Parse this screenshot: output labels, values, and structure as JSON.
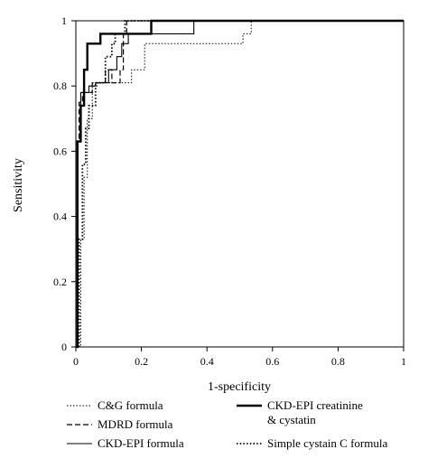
{
  "chart_data": {
    "type": "line",
    "title": "",
    "xlabel": "1-specificity",
    "ylabel": "Sensitivity",
    "xlim": [
      0,
      1
    ],
    "ylim": [
      0,
      1
    ],
    "x_ticks": [
      "0",
      "0.2",
      "0.4",
      "0.6",
      "0.8",
      "1"
    ],
    "y_ticks": [
      "0",
      "0.2",
      "0.4",
      "0.6",
      "0.8",
      "1"
    ],
    "grid": false,
    "legend_position": "bottom",
    "series": [
      {
        "name": "C&G formula",
        "line_style": "dotted-thin",
        "points": [
          [
            0,
            0
          ],
          [
            0.015,
            0
          ],
          [
            0.015,
            0.33
          ],
          [
            0.025,
            0.33
          ],
          [
            0.025,
            0.52
          ],
          [
            0.035,
            0.52
          ],
          [
            0.035,
            0.7
          ],
          [
            0.05,
            0.7
          ],
          [
            0.05,
            0.8
          ],
          [
            0.065,
            0.8
          ],
          [
            0.065,
            0.81
          ],
          [
            0.17,
            0.81
          ],
          [
            0.17,
            0.85
          ],
          [
            0.21,
            0.85
          ],
          [
            0.21,
            0.93
          ],
          [
            0.51,
            0.93
          ],
          [
            0.51,
            0.96
          ],
          [
            0.535,
            0.96
          ],
          [
            0.535,
            1
          ],
          [
            1,
            1
          ]
        ]
      },
      {
        "name": "MDRD formula",
        "line_style": "dashed",
        "points": [
          [
            0,
            0
          ],
          [
            0.005,
            0
          ],
          [
            0.005,
            0.63
          ],
          [
            0.01,
            0.63
          ],
          [
            0.01,
            0.75
          ],
          [
            0.02,
            0.75
          ],
          [
            0.02,
            0.78
          ],
          [
            0.05,
            0.78
          ],
          [
            0.05,
            0.81
          ],
          [
            0.09,
            0.81
          ],
          [
            0.09,
            0.85
          ],
          [
            0.11,
            0.85
          ],
          [
            0.11,
            0.81
          ],
          [
            0.135,
            0.81
          ],
          [
            0.135,
            0.85
          ],
          [
            0.145,
            0.85
          ],
          [
            0.145,
            0.96
          ],
          [
            0.155,
            0.96
          ],
          [
            0.155,
            1
          ],
          [
            1,
            1
          ]
        ]
      },
      {
        "name": "CKD-EPI formula",
        "line_style": "solid-thin",
        "points": [
          [
            0,
            0
          ],
          [
            0.005,
            0
          ],
          [
            0.005,
            0.63
          ],
          [
            0.015,
            0.63
          ],
          [
            0.015,
            0.78
          ],
          [
            0.04,
            0.78
          ],
          [
            0.04,
            0.8
          ],
          [
            0.06,
            0.8
          ],
          [
            0.06,
            0.81
          ],
          [
            0.1,
            0.81
          ],
          [
            0.1,
            0.85
          ],
          [
            0.125,
            0.85
          ],
          [
            0.125,
            0.89
          ],
          [
            0.14,
            0.89
          ],
          [
            0.14,
            0.93
          ],
          [
            0.16,
            0.93
          ],
          [
            0.16,
            0.96
          ],
          [
            0.36,
            0.96
          ],
          [
            0.36,
            1
          ],
          [
            1,
            1
          ]
        ]
      },
      {
        "name": "CKD-EPI creatinine & cystatin",
        "legend_lines": [
          "CKD-EPI creatinine",
          "& cystatin"
        ],
        "line_style": "solid-thick",
        "points": [
          [
            0,
            0
          ],
          [
            0.005,
            0
          ],
          [
            0.005,
            0.63
          ],
          [
            0.015,
            0.63
          ],
          [
            0.015,
            0.74
          ],
          [
            0.025,
            0.74
          ],
          [
            0.025,
            0.85
          ],
          [
            0.035,
            0.85
          ],
          [
            0.035,
            0.93
          ],
          [
            0.075,
            0.93
          ],
          [
            0.075,
            0.96
          ],
          [
            0.23,
            0.96
          ],
          [
            0.23,
            1
          ],
          [
            1,
            1
          ]
        ]
      },
      {
        "name": "Simple cystain C formula",
        "line_style": "dotted-thick",
        "points": [
          [
            0,
            0
          ],
          [
            0.01,
            0
          ],
          [
            0.01,
            0.33
          ],
          [
            0.02,
            0.33
          ],
          [
            0.02,
            0.56
          ],
          [
            0.03,
            0.56
          ],
          [
            0.03,
            0.67
          ],
          [
            0.04,
            0.67
          ],
          [
            0.04,
            0.74
          ],
          [
            0.06,
            0.74
          ],
          [
            0.06,
            0.81
          ],
          [
            0.09,
            0.81
          ],
          [
            0.09,
            0.89
          ],
          [
            0.11,
            0.89
          ],
          [
            0.11,
            0.93
          ],
          [
            0.12,
            0.93
          ],
          [
            0.12,
            0.96
          ],
          [
            0.15,
            0.96
          ],
          [
            0.15,
            1
          ],
          [
            1,
            1
          ]
        ]
      }
    ]
  }
}
